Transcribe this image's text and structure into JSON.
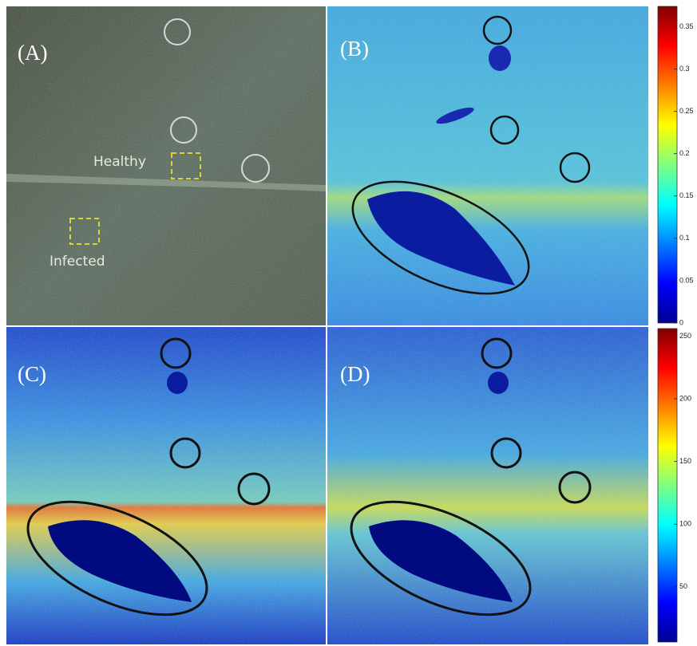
{
  "panels": [
    {
      "label": "(A)"
    },
    {
      "label": "(B)"
    },
    {
      "label": "(C)"
    },
    {
      "label": "(D)"
    }
  ],
  "annotations": {
    "healthy": "Healthy",
    "infected": "Infected"
  },
  "colorbars": [
    {
      "lim": [
        0,
        0.374
      ],
      "ticks": [
        0,
        0.05,
        0.1,
        0.15,
        0.2,
        0.25,
        0.3,
        0.35
      ]
    },
    {
      "lim": [
        6,
        256
      ],
      "ticks": [
        50,
        100,
        150,
        200,
        250
      ]
    }
  ]
}
